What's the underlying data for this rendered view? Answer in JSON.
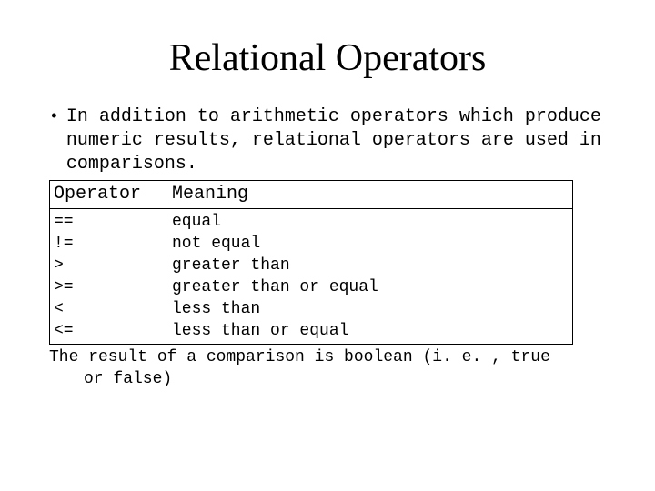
{
  "title": "Relational Operators",
  "bullet": "In addition to arithmetic operators which produce numeric results, relational operators are used in comparisons.",
  "table": {
    "header_op": "Operator",
    "header_meaning": "Meaning",
    "rows": [
      {
        "op": "==",
        "meaning": "equal"
      },
      {
        "op": "!=",
        "meaning": "not equal"
      },
      {
        "op": ">",
        "meaning": "greater than"
      },
      {
        "op": ">=",
        "meaning": "greater than or equal"
      },
      {
        "op": "<",
        "meaning": "less than"
      },
      {
        "op": "<=",
        "meaning": "less than or equal"
      }
    ]
  },
  "footer_line1": "The result of a comparison is boolean (i. e. , true",
  "footer_line2": "or false)"
}
